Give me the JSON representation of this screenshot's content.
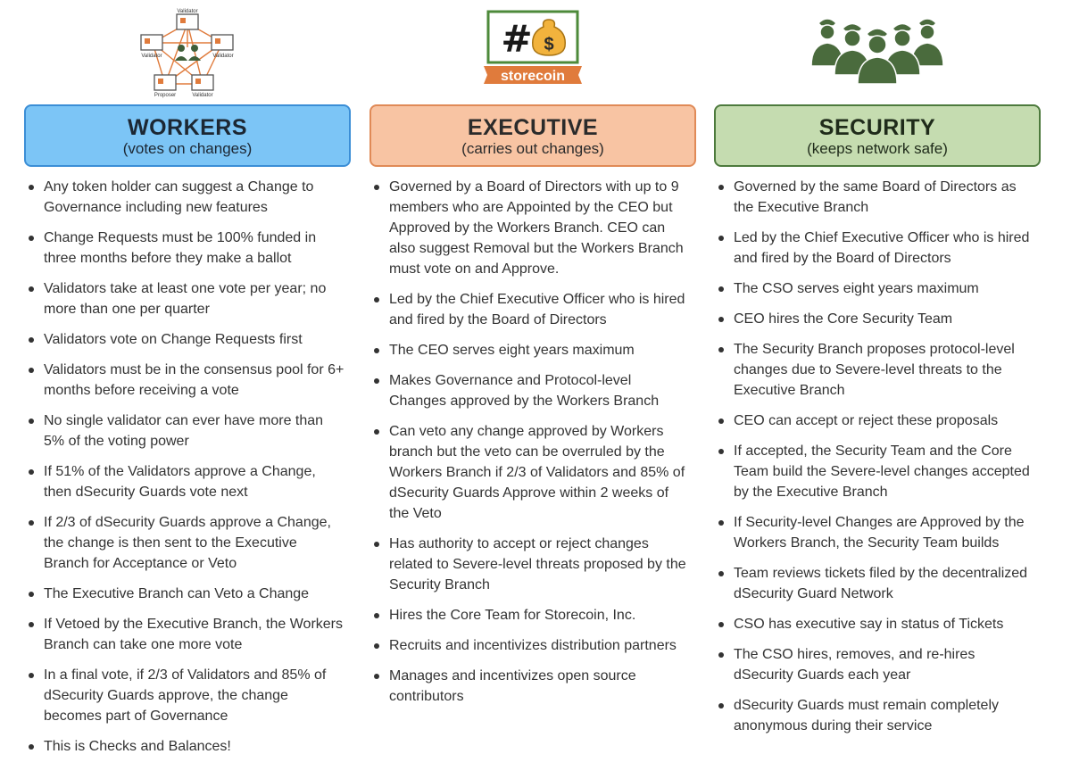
{
  "columns": {
    "workers": {
      "title": "WORKERS",
      "subtitle": "(votes on changes)",
      "icon": "validator-network-icon",
      "icon_labels": {
        "top": "Validator",
        "left": "Validator",
        "right": "Validator",
        "bottom_left": "Proposer",
        "bottom_right": "Validator"
      },
      "items": [
        "Any token holder can suggest a Change to Governance including new features",
        "Change Requests must be 100% funded in three months before they make a ballot",
        "Validators take at least one vote per year; no more than one per quarter",
        "Validators vote on Change Requests first",
        "Validators must be in the consensus pool for 6+ months before receiving a vote",
        "No single validator can ever have more than 5% of the voting power",
        "If 51% of the Validators approve a Change, then dSecurity Guards vote next",
        "If 2/3 of dSecurity Guards approve a Change, the change is then sent to the Executive Branch for Acceptance or Veto",
        "The Executive Branch can Veto a Change",
        "If Vetoed by the Executive Branch, the Workers Branch can take one more vote",
        "In a final vote, if 2/3 of Validators and 85% of dSecurity Guards approve, the change becomes part of Governance",
        "This is Checks and Balances!"
      ]
    },
    "executive": {
      "title": "EXECUTIVE",
      "subtitle": "(carries out changes)",
      "icon": "storecoin-logo-icon",
      "logo_text": "storecoin",
      "logo_symbol": "#",
      "logo_bag_symbol": "$",
      "items": [
        "Governed by a Board of Directors with up to 9 members who are Appointed by the CEO but Approved by the Workers Branch. CEO can also suggest Removal but the Workers Branch must vote on and Approve.",
        "Led by the Chief Executive Officer who is hired and fired by the Board of Directors",
        "The CEO serves eight years maximum",
        "Makes Governance and Protocol-level Changes approved by the Workers Branch",
        "Can veto any change approved by Workers branch but the veto can be overruled by the Workers Branch if 2/3 of Validators and 85% of dSecurity Guards Approve within 2 weeks of the Veto",
        "Has authority to accept or reject changes related to Severe-level threats proposed by the Security Branch",
        "Hires the Core Team for Storecoin, Inc.",
        "Recruits and incentivizes distribution partners",
        "Manages and incentivizes open source contributors"
      ]
    },
    "security": {
      "title": "SECURITY",
      "subtitle": "(keeps network safe)",
      "icon": "security-guards-icon",
      "items": [
        "Governed by the same Board of Directors as the Executive Branch",
        "Led by the Chief Executive Officer who is hired and fired by the Board of Directors",
        "The CSO serves eight years maximum",
        "CEO hires the Core Security Team",
        "The Security Branch proposes protocol-level changes due to Severe-level threats to the Executive Branch",
        "CEO can accept or reject these proposals",
        "If accepted, the Security Team and the Core Team build the Severe-level changes accepted by the Executive Branch",
        "If Security-level Changes are Approved by the Workers Branch, the Security Team builds",
        "Team reviews tickets filed by the decentralized dSecurity Guard Network",
        "CSO has executive say in status of Tickets",
        "The CSO hires, removes, and re-hires dSecurity Guards each year",
        "dSecurity Guards must remain completely anonymous during their service"
      ]
    }
  },
  "colors": {
    "workers_fill": "#7cc5f6",
    "workers_border": "#3b8ed6",
    "executive_fill": "#f8c4a3",
    "executive_border": "#e08a57",
    "security_fill": "#c5dcb0",
    "security_border": "#4d7a3d",
    "guard_green": "#4a6b3d"
  }
}
